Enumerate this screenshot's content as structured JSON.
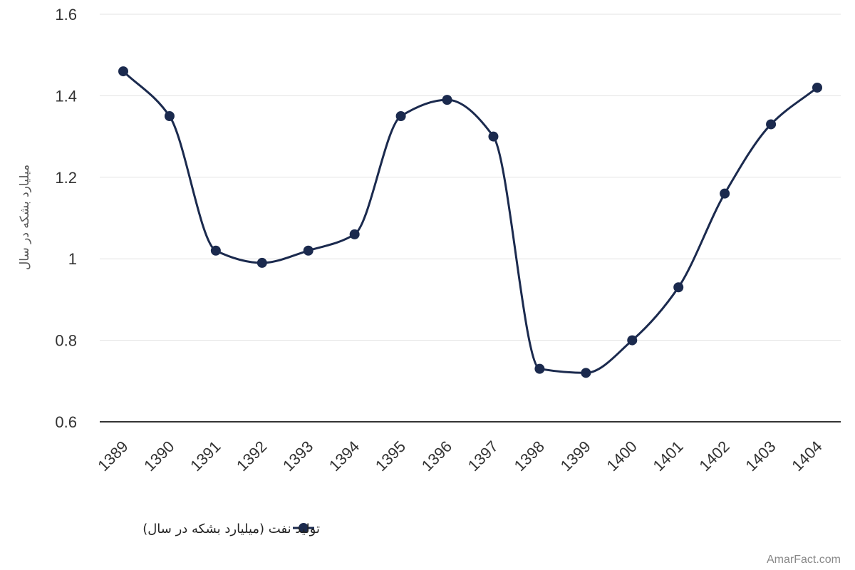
{
  "chart_data": {
    "type": "line",
    "title": "",
    "xlabel": "",
    "ylabel": "میلیارد بشکه در سال",
    "categories": [
      "1389",
      "1390",
      "1391",
      "1392",
      "1393",
      "1394",
      "1395",
      "1396",
      "1397",
      "1398",
      "1399",
      "1400",
      "1401",
      "1402",
      "1403",
      "1404"
    ],
    "series": [
      {
        "name": "تولید نفت (میلیارد بشکه در سال)",
        "values": [
          1.46,
          1.35,
          1.02,
          0.99,
          1.02,
          1.06,
          1.35,
          1.39,
          1.3,
          0.73,
          0.72,
          0.8,
          0.93,
          1.16,
          1.33,
          1.42
        ]
      }
    ],
    "ylim": [
      0.6,
      1.6
    ],
    "yticks": [
      0.6,
      0.8,
      1,
      1.2,
      1.4,
      1.6
    ],
    "ytick_labels": [
      "0.6",
      "0.8",
      "1",
      "1.2",
      "1.4",
      "1.6"
    ],
    "grid": true,
    "legend_position": "bottom",
    "smooth": true,
    "colors": {
      "line": "#1b2a4e",
      "grid": "#e3e3e3",
      "axis": "#333333"
    }
  },
  "watermark": "AmarFact.com"
}
